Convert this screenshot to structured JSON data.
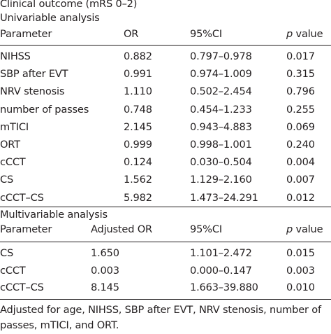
{
  "title": "Clinical outcome (mRS 0–2)",
  "univariable": {
    "heading": "Univariable analysis",
    "header": {
      "parameter": "Parameter",
      "stat": "OR",
      "ci": "95%CI",
      "p_italic": "p",
      "p_rest": " value"
    },
    "rows": [
      {
        "parameter": "NIHSS",
        "or": "0.882",
        "ci": "0.797–0.978",
        "p": "0.017"
      },
      {
        "parameter": "SBP after EVT",
        "or": "0.991",
        "ci": "0.974–1.009",
        "p": "0.315"
      },
      {
        "parameter": "NRV stenosis",
        "or": "1.110",
        "ci": "0.502–2.454",
        "p": "0.796"
      },
      {
        "parameter": "number of passes",
        "or": "0.748",
        "ci": "0.454–1.233",
        "p": "0.255"
      },
      {
        "parameter": "mTICI",
        "or": "2.145",
        "ci": "0.943–4.883",
        "p": "0.069"
      },
      {
        "parameter": "ORT",
        "or": "0.999",
        "ci": "0.998–1.001",
        "p": "0.240"
      },
      {
        "parameter": "cCCT",
        "or": "0.124",
        "ci": "0.030–0.504",
        "p": "0.004"
      },
      {
        "parameter": "CS",
        "or": "1.562",
        "ci": "1.129–2.160",
        "p": "0.007"
      },
      {
        "parameter": "cCCT–CS",
        "or": "5.982",
        "ci": "1.473–24.291",
        "p": "0.012"
      }
    ]
  },
  "multivariable": {
    "heading": "Multivariable analysis",
    "header": {
      "parameter": "Parameter",
      "stat": "Adjusted OR",
      "ci": "95%CI",
      "p_italic": "p",
      "p_rest": " value"
    },
    "rows": [
      {
        "parameter": "CS",
        "or": "1.650",
        "ci": "1.101–2.472",
        "p": "0.015"
      },
      {
        "parameter": "cCCT",
        "or": "0.003",
        "ci": "0.000–0.147",
        "p": "0.003"
      },
      {
        "parameter": "cCCT–CS",
        "or": "8.145",
        "ci": "1.663–39.880",
        "p": "0.010"
      }
    ]
  },
  "footnote": {
    "line1": "Adjusted for age, NIHSS, SBP after EVT, NRV stenosis, number of",
    "line2": "passes, mTICI, and ORT."
  }
}
